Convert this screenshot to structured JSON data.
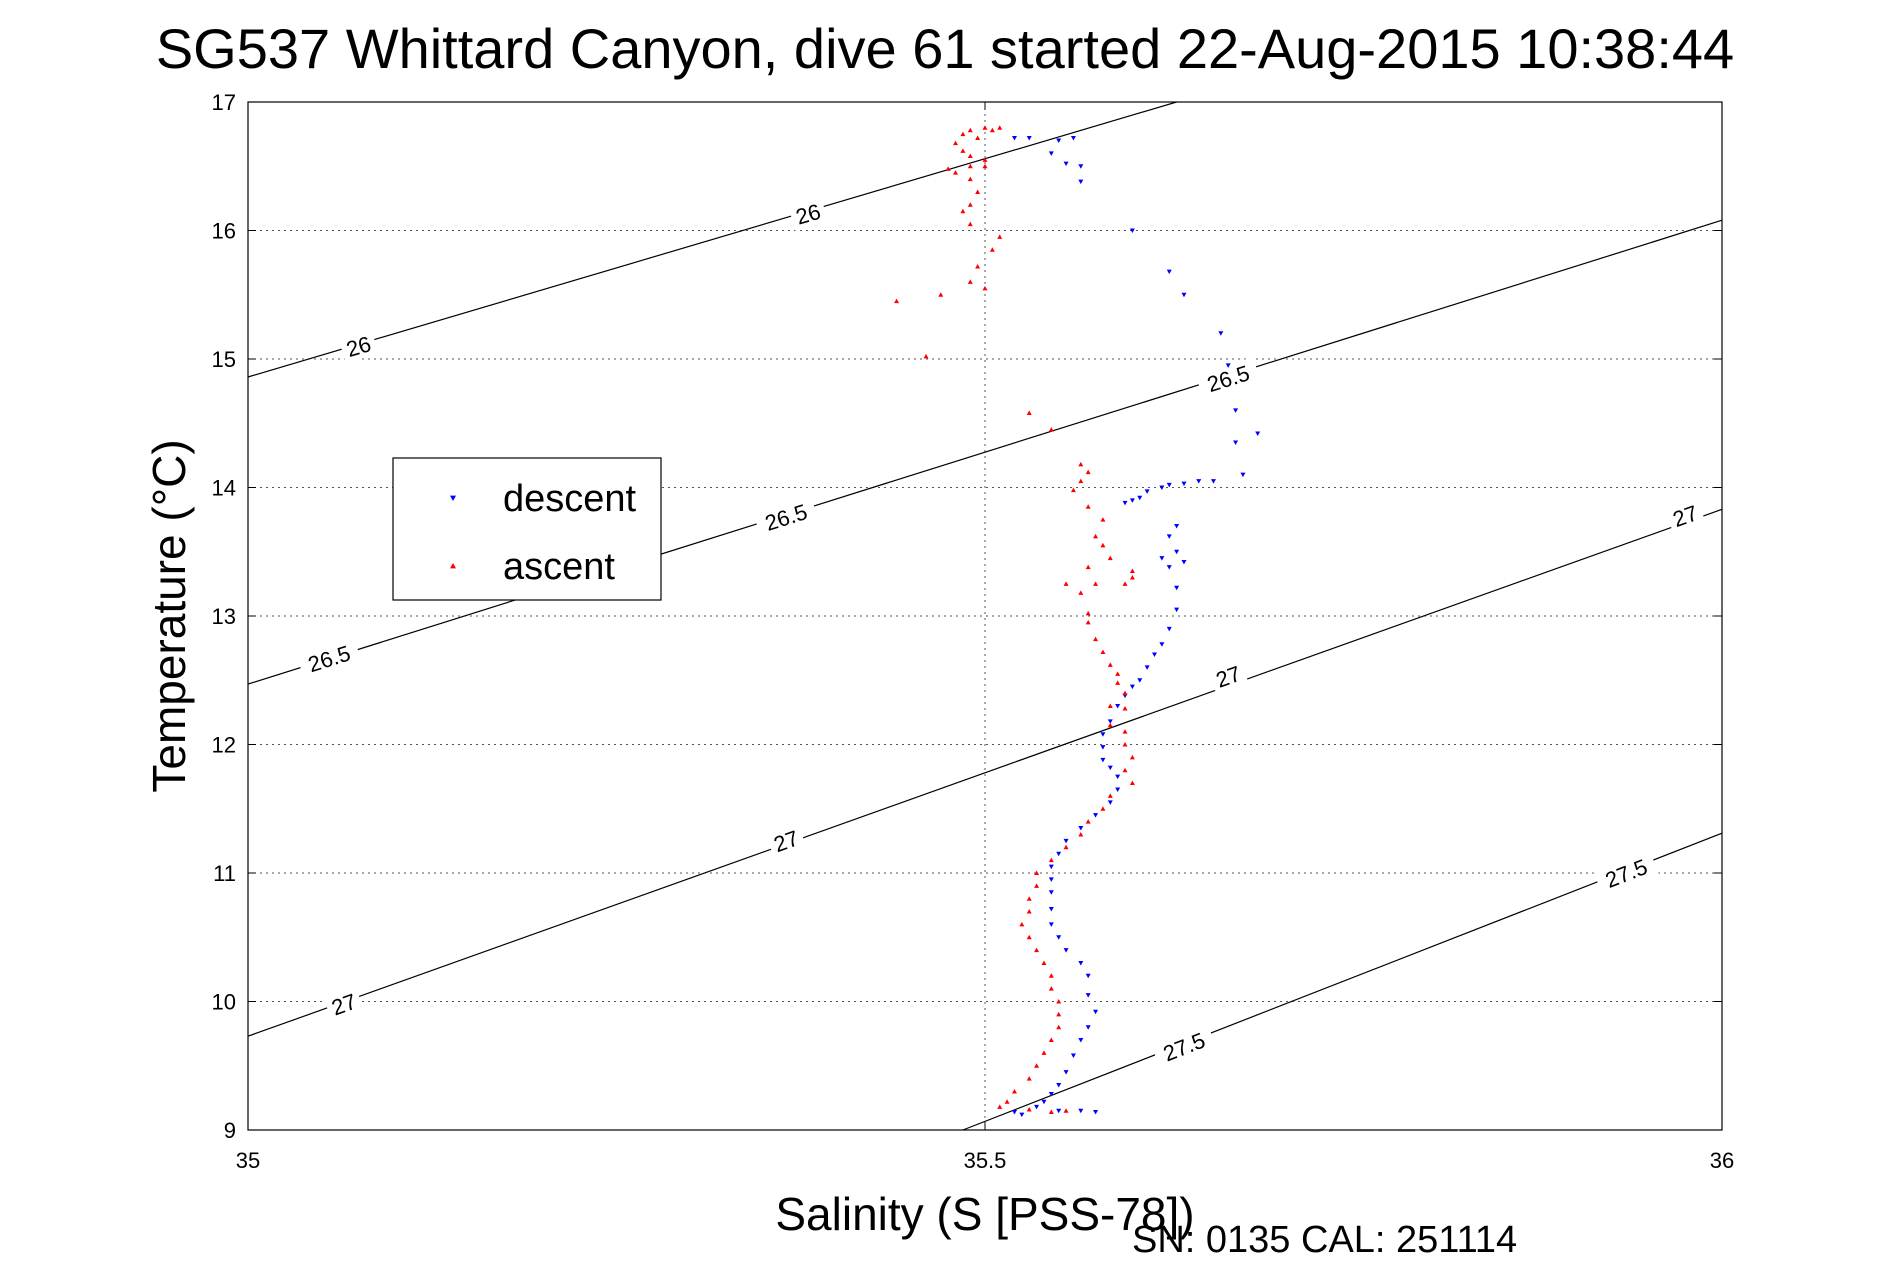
{
  "chart_data": {
    "type": "scatter",
    "title": "SG537 Whittard Canyon, dive 61 started 22-Aug-2015 10:38:44",
    "xlabel": "Salinity (S [PSS-78])",
    "ylabel": "Temperature (°C)",
    "xlim": [
      35,
      36
    ],
    "ylim": [
      9,
      17
    ],
    "x_ticks": [
      "35",
      "35.5",
      "36"
    ],
    "y_ticks": [
      "9",
      "10",
      "11",
      "12",
      "13",
      "14",
      "15",
      "16",
      "17"
    ],
    "grid": true,
    "legend_position": "left",
    "footer": "SN: 0135  CAL: 251114",
    "density_contours": [
      {
        "label": "26",
        "points": [
          [
            35,
            14.86
          ],
          [
            35.63,
            17.0
          ]
        ],
        "label_positions": [
          [
            35.075,
            15.1
          ],
          [
            35.38,
            16.13
          ]
        ]
      },
      {
        "label": "26.5",
        "points": [
          [
            35,
            12.47
          ],
          [
            36,
            16.08
          ]
        ],
        "label_positions": [
          [
            35.055,
            12.67
          ],
          [
            35.365,
            13.77
          ],
          [
            35.665,
            14.85
          ]
        ]
      },
      {
        "label": "27",
        "points": [
          [
            35,
            9.73
          ],
          [
            36,
            13.83
          ]
        ],
        "label_positions": [
          [
            35.065,
            9.98
          ],
          [
            35.365,
            11.25
          ],
          [
            35.665,
            12.53
          ],
          [
            35.975,
            13.78
          ]
        ]
      },
      {
        "label": "27.5",
        "points": [
          [
            35.485,
            9.0
          ],
          [
            36,
            11.31
          ]
        ],
        "label_positions": [
          [
            35.635,
            9.65
          ],
          [
            35.935,
            11.0
          ]
        ]
      }
    ],
    "series": [
      {
        "name": "descent",
        "color": "#0000ff",
        "marker": "triangle-down",
        "points": [
          [
            35.52,
            16.72
          ],
          [
            35.53,
            16.72
          ],
          [
            35.55,
            16.7
          ],
          [
            35.56,
            16.72
          ],
          [
            35.545,
            16.6
          ],
          [
            35.555,
            16.52
          ],
          [
            35.565,
            16.5
          ],
          [
            35.565,
            16.38
          ],
          [
            35.6,
            16.0
          ],
          [
            35.625,
            15.68
          ],
          [
            35.635,
            15.5
          ],
          [
            35.66,
            15.2
          ],
          [
            35.665,
            14.95
          ],
          [
            35.67,
            14.6
          ],
          [
            35.685,
            14.42
          ],
          [
            35.67,
            14.35
          ],
          [
            35.675,
            14.1
          ],
          [
            35.655,
            14.05
          ],
          [
            35.645,
            14.05
          ],
          [
            35.635,
            14.03
          ],
          [
            35.625,
            14.02
          ],
          [
            35.62,
            14.0
          ],
          [
            35.61,
            13.97
          ],
          [
            35.605,
            13.92
          ],
          [
            35.6,
            13.9
          ],
          [
            35.595,
            13.88
          ],
          [
            35.63,
            13.7
          ],
          [
            35.625,
            13.62
          ],
          [
            35.63,
            13.5
          ],
          [
            35.635,
            13.42
          ],
          [
            35.625,
            13.38
          ],
          [
            35.62,
            13.45
          ],
          [
            35.63,
            13.22
          ],
          [
            35.63,
            13.05
          ],
          [
            35.625,
            12.9
          ],
          [
            35.62,
            12.78
          ],
          [
            35.615,
            12.7
          ],
          [
            35.61,
            12.6
          ],
          [
            35.605,
            12.5
          ],
          [
            35.6,
            12.45
          ],
          [
            35.595,
            12.38
          ],
          [
            35.59,
            12.3
          ],
          [
            35.585,
            12.18
          ],
          [
            35.58,
            12.08
          ],
          [
            35.58,
            11.98
          ],
          [
            35.58,
            11.88
          ],
          [
            35.585,
            11.82
          ],
          [
            35.59,
            11.75
          ],
          [
            35.59,
            11.65
          ],
          [
            35.585,
            11.55
          ],
          [
            35.575,
            11.45
          ],
          [
            35.565,
            11.35
          ],
          [
            35.555,
            11.25
          ],
          [
            35.55,
            11.15
          ],
          [
            35.545,
            11.05
          ],
          [
            35.545,
            10.95
          ],
          [
            35.545,
            10.85
          ],
          [
            35.545,
            10.72
          ],
          [
            35.545,
            10.6
          ],
          [
            35.55,
            10.5
          ],
          [
            35.555,
            10.4
          ],
          [
            35.565,
            10.3
          ],
          [
            35.57,
            10.2
          ],
          [
            35.57,
            10.05
          ],
          [
            35.575,
            9.92
          ],
          [
            35.57,
            9.8
          ],
          [
            35.565,
            9.7
          ],
          [
            35.56,
            9.58
          ],
          [
            35.555,
            9.45
          ],
          [
            35.55,
            9.35
          ],
          [
            35.545,
            9.28
          ],
          [
            35.54,
            9.22
          ],
          [
            35.535,
            9.18
          ],
          [
            35.55,
            9.15
          ],
          [
            35.565,
            9.15
          ],
          [
            35.575,
            9.14
          ],
          [
            35.52,
            9.14
          ],
          [
            35.525,
            9.12
          ]
        ]
      },
      {
        "name": "ascent",
        "color": "#ff0000",
        "marker": "triangle-up",
        "points": [
          [
            35.485,
            16.75
          ],
          [
            35.49,
            16.78
          ],
          [
            35.5,
            16.8
          ],
          [
            35.505,
            16.78
          ],
          [
            35.51,
            16.8
          ],
          [
            35.495,
            16.72
          ],
          [
            35.48,
            16.68
          ],
          [
            35.485,
            16.62
          ],
          [
            35.49,
            16.58
          ],
          [
            35.5,
            16.55
          ],
          [
            35.49,
            16.5
          ],
          [
            35.475,
            16.48
          ],
          [
            35.48,
            16.45
          ],
          [
            35.49,
            16.4
          ],
          [
            35.5,
            16.5
          ],
          [
            35.495,
            16.3
          ],
          [
            35.49,
            16.2
          ],
          [
            35.485,
            16.15
          ],
          [
            35.49,
            16.05
          ],
          [
            35.51,
            15.95
          ],
          [
            35.505,
            15.85
          ],
          [
            35.495,
            15.72
          ],
          [
            35.49,
            15.6
          ],
          [
            35.5,
            15.55
          ],
          [
            35.47,
            15.5
          ],
          [
            35.44,
            15.45
          ],
          [
            35.46,
            15.02
          ],
          [
            35.53,
            14.58
          ],
          [
            35.545,
            14.45
          ],
          [
            35.565,
            14.18
          ],
          [
            35.57,
            14.12
          ],
          [
            35.565,
            14.05
          ],
          [
            35.56,
            13.98
          ],
          [
            35.57,
            13.85
          ],
          [
            35.58,
            13.75
          ],
          [
            35.575,
            13.62
          ],
          [
            35.58,
            13.55
          ],
          [
            35.585,
            13.45
          ],
          [
            35.57,
            13.38
          ],
          [
            35.6,
            13.35
          ],
          [
            35.6,
            13.3
          ],
          [
            35.555,
            13.25
          ],
          [
            35.575,
            13.25
          ],
          [
            35.595,
            13.25
          ],
          [
            35.565,
            13.18
          ],
          [
            35.57,
            13.02
          ],
          [
            35.57,
            12.95
          ],
          [
            35.575,
            12.82
          ],
          [
            35.58,
            12.72
          ],
          [
            35.585,
            12.62
          ],
          [
            35.59,
            12.55
          ],
          [
            35.59,
            12.48
          ],
          [
            35.595,
            12.4
          ],
          [
            35.585,
            12.3
          ],
          [
            35.595,
            12.28
          ],
          [
            35.585,
            12.15
          ],
          [
            35.595,
            12.1
          ],
          [
            35.595,
            12.0
          ],
          [
            35.6,
            11.9
          ],
          [
            35.595,
            11.8
          ],
          [
            35.6,
            11.7
          ],
          [
            35.585,
            11.6
          ],
          [
            35.58,
            11.5
          ],
          [
            35.57,
            11.4
          ],
          [
            35.565,
            11.3
          ],
          [
            35.555,
            11.2
          ],
          [
            35.545,
            11.1
          ],
          [
            35.535,
            11.0
          ],
          [
            35.535,
            10.9
          ],
          [
            35.53,
            10.8
          ],
          [
            35.53,
            10.7
          ],
          [
            35.525,
            10.6
          ],
          [
            35.53,
            10.5
          ],
          [
            35.535,
            10.4
          ],
          [
            35.54,
            10.3
          ],
          [
            35.545,
            10.2
          ],
          [
            35.545,
            10.1
          ],
          [
            35.55,
            10.0
          ],
          [
            35.55,
            9.9
          ],
          [
            35.55,
            9.8
          ],
          [
            35.545,
            9.7
          ],
          [
            35.54,
            9.6
          ],
          [
            35.535,
            9.5
          ],
          [
            35.53,
            9.4
          ],
          [
            35.52,
            9.3
          ],
          [
            35.515,
            9.22
          ],
          [
            35.51,
            9.18
          ],
          [
            35.53,
            9.16
          ],
          [
            35.545,
            9.14
          ],
          [
            35.555,
            9.15
          ]
        ]
      }
    ]
  }
}
